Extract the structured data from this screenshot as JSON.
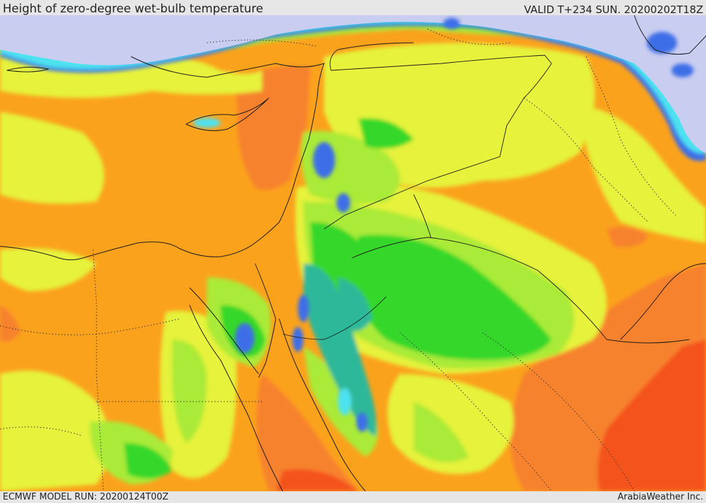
{
  "header": {
    "title": "Height of zero-degree wet-bulb temperature",
    "valid": "VALID T+234 SUN. 20200202T18Z"
  },
  "footer": {
    "model_run": "ECMWF MODEL RUN: 20200124T00Z",
    "credit": "ArabiaWeather Inc."
  },
  "colors": {
    "sea_lavender": "#c9cdf0",
    "deep_orange_red": "#f4521a",
    "orange_red": "#f7822d",
    "orange": "#fba21c",
    "yellow_orange": "#f6c01e",
    "yellow_green": "#e6f23a",
    "light_green": "#aaea38",
    "green": "#35d82a",
    "teal": "#2fb89a",
    "cyan": "#4ee2f0",
    "blue": "#3c6ee8",
    "border_line": "#1a1a1a"
  }
}
